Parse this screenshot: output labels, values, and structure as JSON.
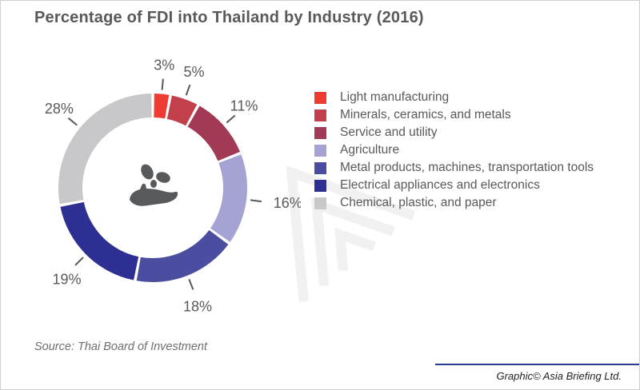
{
  "title": "Percentage of FDI into Thailand by Industry (2016)",
  "source_note": "Source: Thai Board of Investment",
  "attribution": "Graphic© Asia Briefing Ltd.",
  "colors": {
    "text": "#58595b",
    "accent_line": "#2b3990",
    "watermark": "#f1f1f2",
    "center_icon": "#58595b"
  },
  "chart_data": {
    "type": "pie",
    "subtype": "donut",
    "title": "Percentage of FDI into Thailand by Industry (2016)",
    "categories": [
      "Light manufacturing",
      "Minerals, ceramics, and metals",
      "Service and utility",
      "Agriculture",
      "Metal products, machines, transportation tools",
      "Electrical appliances and electronics",
      "Chemical, plastic, and paper"
    ],
    "values": [
      3,
      5,
      11,
      16,
      18,
      19,
      28
    ],
    "labels": [
      "3%",
      "5%",
      "11%",
      "16%",
      "18%",
      "19%",
      "28%"
    ],
    "slice_colors": [
      "#ee3c32",
      "#c2404b",
      "#a23a56",
      "#a5a3d3",
      "#4b4ea0",
      "#2d2f93",
      "#c8c8ca"
    ],
    "unit": "%",
    "total": 100,
    "start_angle_deg": 0,
    "direction": "clockwise",
    "legend_position": "right",
    "center_icon": "hand-with-seeds"
  }
}
